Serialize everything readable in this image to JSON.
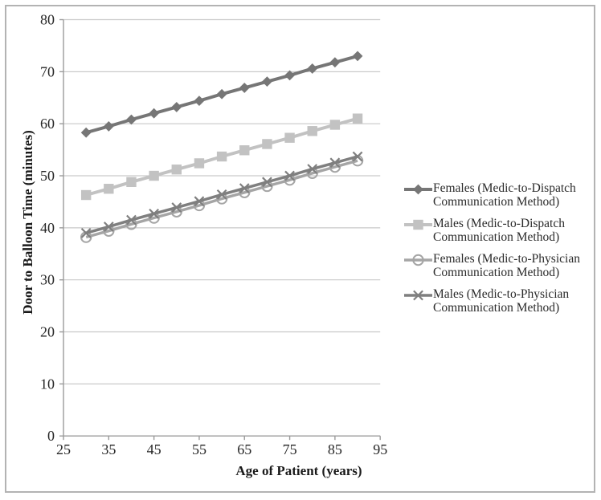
{
  "chart_data": {
    "type": "line",
    "title": "",
    "xlabel": "Age of Patient (years)",
    "ylabel": "Door to Balloon Time (minutes)",
    "xlim": [
      25,
      95
    ],
    "ylim": [
      0,
      80
    ],
    "x_ticks": [
      25,
      35,
      45,
      55,
      65,
      75,
      85,
      95
    ],
    "y_ticks": [
      0,
      10,
      20,
      30,
      40,
      50,
      60,
      70,
      80
    ],
    "grid": "horizontal",
    "legend_position": "right",
    "x": [
      30,
      35,
      40,
      45,
      50,
      55,
      60,
      65,
      70,
      75,
      80,
      85,
      90
    ],
    "series": [
      {
        "name": "Females (Medic-to-Dispatch Communication Method)",
        "legend_line1": "Females (Medic-to-Dispatch",
        "legend_line2": "Communication Method)",
        "marker": "diamond",
        "color": "#767676",
        "line_width": 4,
        "values": [
          58.3,
          59.5,
          60.8,
          62.0,
          63.2,
          64.4,
          65.7,
          66.9,
          68.1,
          69.3,
          70.6,
          71.8,
          73.0
        ]
      },
      {
        "name": "Males (Medic-to-Dispatch Communication Method)",
        "legend_line1": "Males (Medic-to-Dispatch",
        "legend_line2": "Communication Method)",
        "marker": "square",
        "color": "#c2c2c2",
        "line_width": 4,
        "values": [
          46.3,
          47.5,
          48.8,
          50.0,
          51.2,
          52.4,
          53.7,
          54.9,
          56.1,
          57.3,
          58.6,
          59.8,
          61.0
        ]
      },
      {
        "name": "Females (Medic-to-Physician Communication Method)",
        "legend_line1": "Females (Medic-to-Physician",
        "legend_line2": "Communication Method)",
        "marker": "circle-open",
        "color": "#a5a5a5",
        "line_width": 3.5,
        "values": [
          38.2,
          39.4,
          40.7,
          41.9,
          43.1,
          44.3,
          45.6,
          46.8,
          48.0,
          49.2,
          50.5,
          51.7,
          52.9
        ]
      },
      {
        "name": "Males (Medic-to-Physician Communication Method)",
        "legend_line1": "Males (Medic-to-Physician",
        "legend_line2": "Communication Method)",
        "marker": "x",
        "color": "#7f7f7f",
        "line_width": 3.5,
        "values": [
          39.0,
          40.2,
          41.5,
          42.7,
          43.9,
          45.1,
          46.4,
          47.6,
          48.8,
          50.0,
          51.3,
          52.5,
          53.7
        ]
      }
    ],
    "colors": {
      "gridline": "#c9c9c9",
      "axis": "#9b9b9b",
      "tick_text": "#262626",
      "frame_border": "#b3b3b3"
    }
  }
}
